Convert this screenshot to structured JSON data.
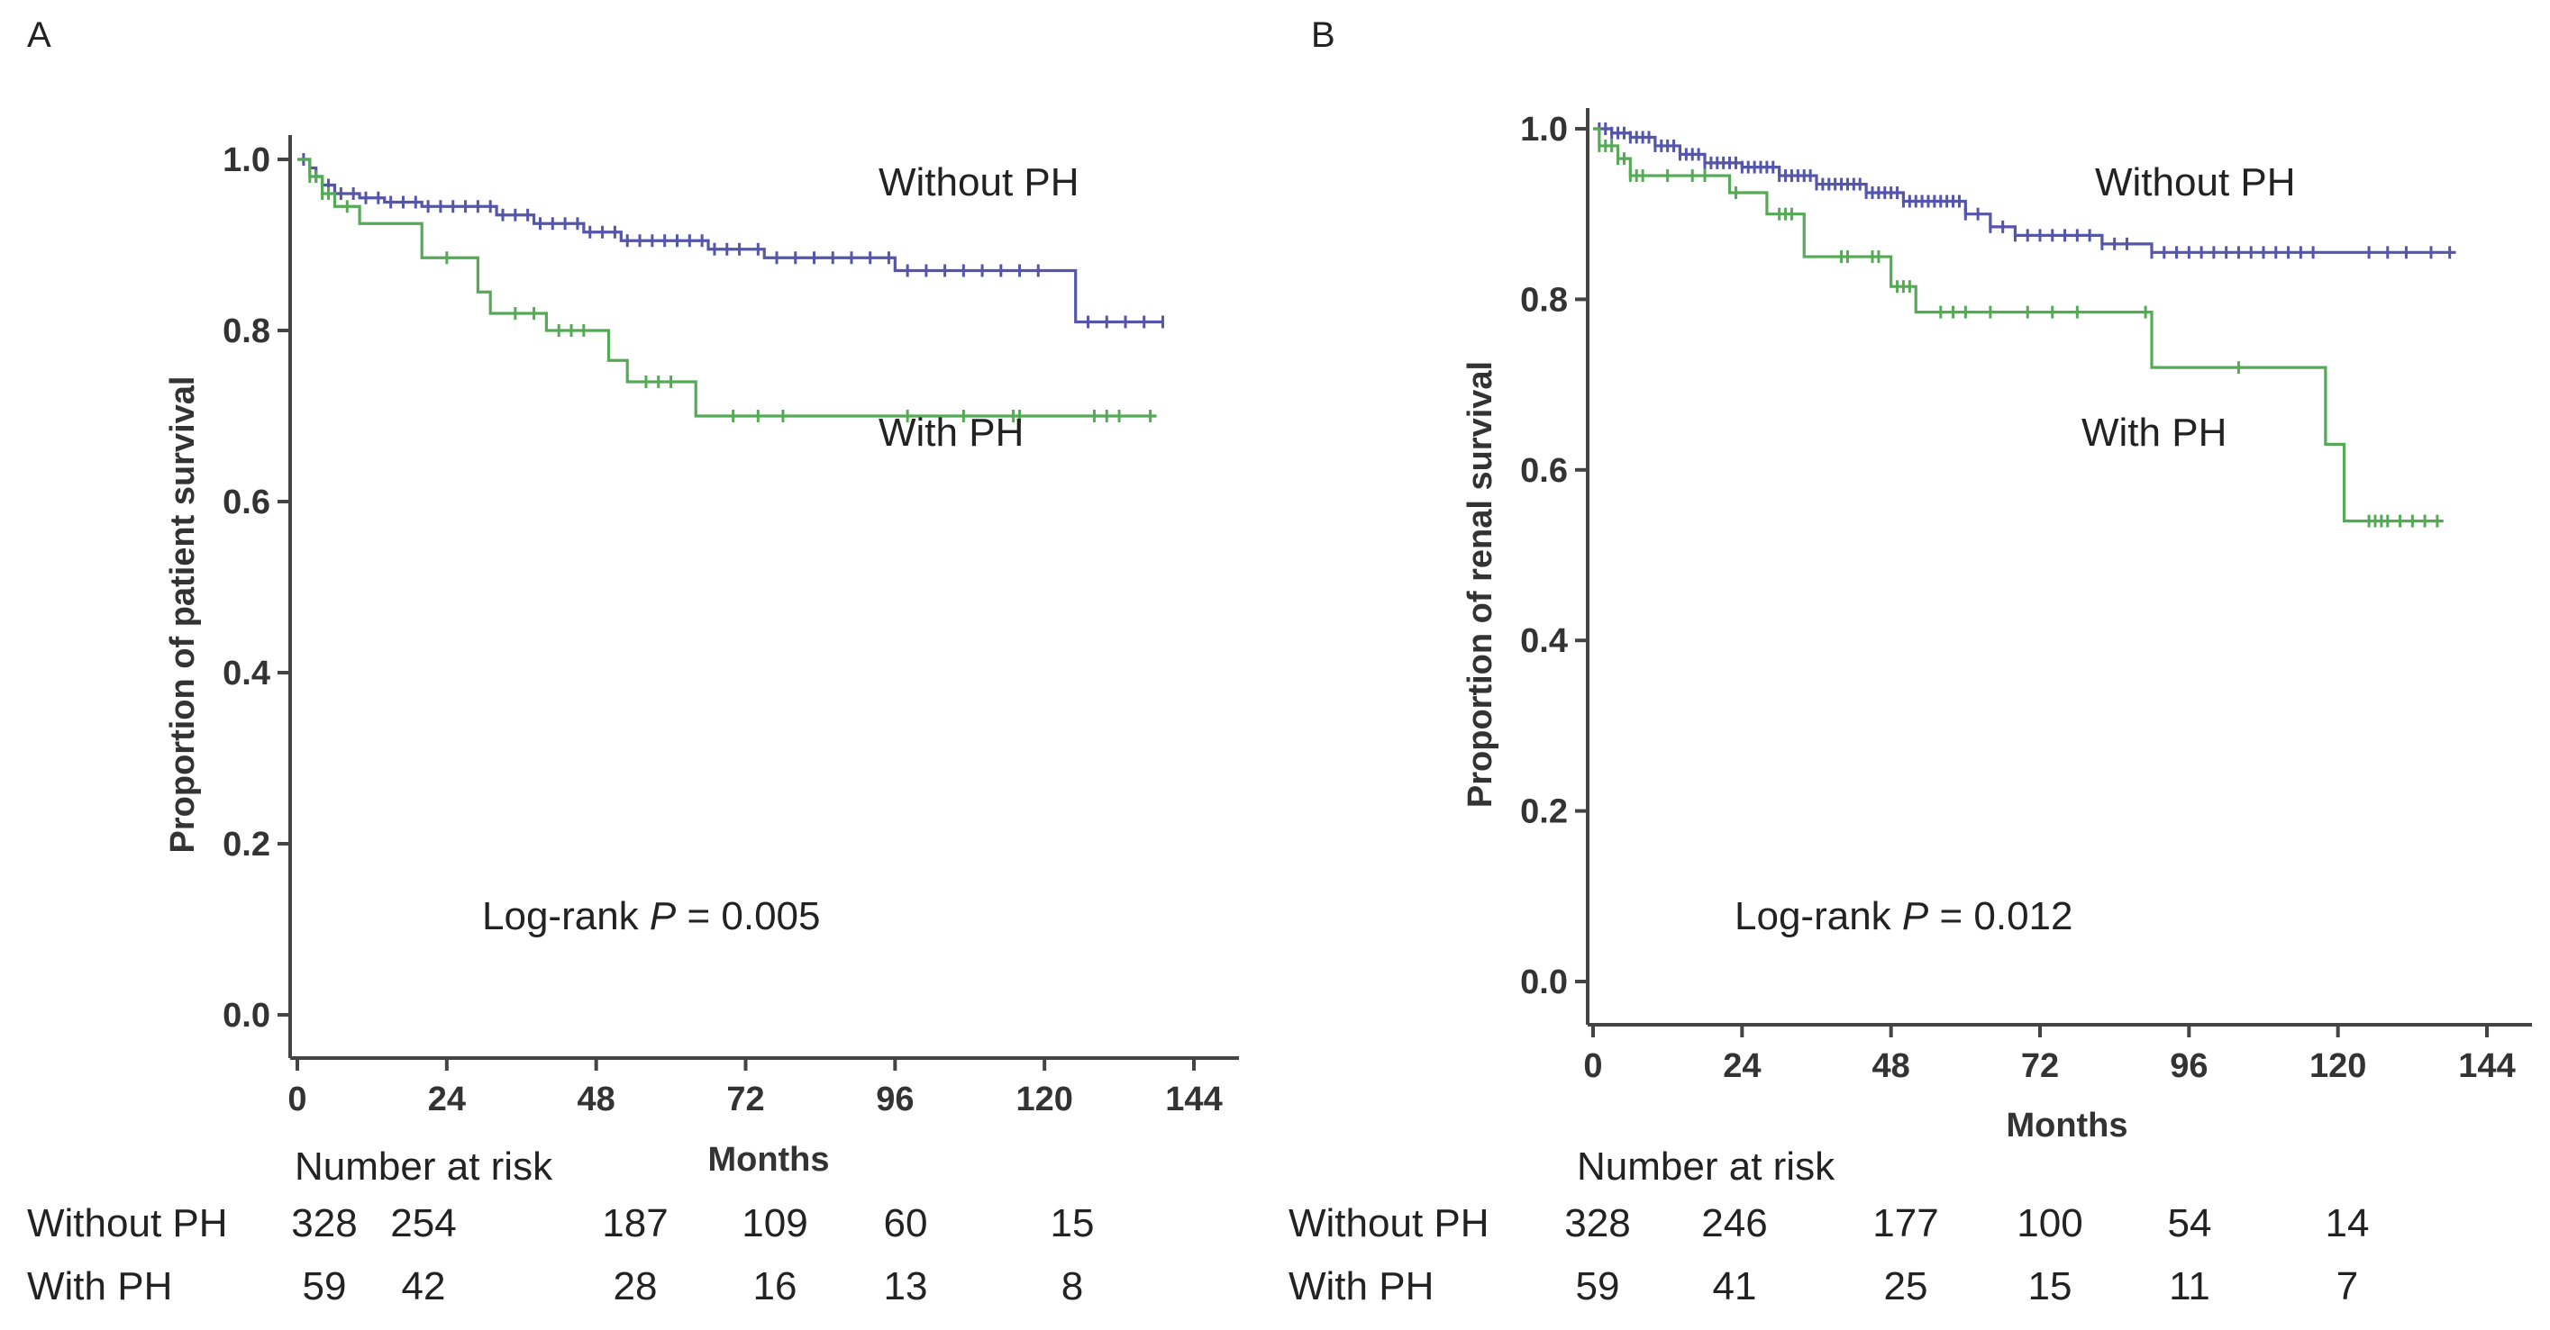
{
  "chart_data": [
    {
      "panel": "A",
      "type": "line",
      "subtype": "kaplan-meier",
      "xlabel": "Months",
      "ylabel": "Proportion of patient survival",
      "xlim": [
        0,
        144
      ],
      "ylim": [
        0,
        1
      ],
      "xticks": [
        "0",
        "24",
        "48",
        "72",
        "96",
        "120",
        "144"
      ],
      "yticks": [
        "0.0",
        "0.2",
        "0.4",
        "0.6",
        "0.8",
        "1.0"
      ],
      "series": [
        {
          "name": "Without PH",
          "color": "#5555aa",
          "steps": [
            [
              0,
              1.0
            ],
            [
              2,
              0.99
            ],
            [
              3,
              0.98
            ],
            [
              4,
              0.97
            ],
            [
              6,
              0.96
            ],
            [
              10,
              0.955
            ],
            [
              14,
              0.95
            ],
            [
              20,
              0.945
            ],
            [
              32,
              0.935
            ],
            [
              38,
              0.925
            ],
            [
              46,
              0.915
            ],
            [
              52,
              0.905
            ],
            [
              66,
              0.895
            ],
            [
              75,
              0.885
            ],
            [
              96,
              0.87
            ],
            [
              124,
              0.87
            ],
            [
              125,
              0.81
            ],
            [
              139,
              0.81
            ]
          ],
          "censors": [
            1,
            3,
            5,
            7,
            9,
            11,
            13,
            15,
            17,
            19,
            21,
            23,
            25,
            27,
            29,
            31,
            33,
            35,
            37,
            39,
            41,
            43,
            45,
            47,
            49,
            51,
            53,
            55,
            57,
            59,
            61,
            63,
            65,
            67,
            69,
            71,
            74,
            77,
            80,
            83,
            86,
            89,
            92,
            95,
            98,
            101,
            104,
            107,
            110,
            113,
            116,
            119,
            127,
            130,
            133,
            136,
            139
          ]
        },
        {
          "name": "With PH",
          "color": "#55aa55",
          "steps": [
            [
              0,
              1.0
            ],
            [
              2,
              0.98
            ],
            [
              4,
              0.96
            ],
            [
              6,
              0.945
            ],
            [
              10,
              0.925
            ],
            [
              20,
              0.885
            ],
            [
              29,
              0.845
            ],
            [
              31,
              0.82
            ],
            [
              40,
              0.8
            ],
            [
              50,
              0.765
            ],
            [
              53,
              0.74
            ],
            [
              64,
              0.7
            ],
            [
              138,
              0.7
            ]
          ],
          "censors": [
            2,
            3,
            4,
            5,
            8,
            24,
            35,
            38,
            42,
            44,
            46,
            56,
            58,
            60,
            70,
            74,
            78,
            98,
            107,
            115,
            116,
            128,
            130,
            132,
            137
          ]
        }
      ],
      "annotations": {
        "without_label": "Without PH",
        "with_label": "With PH",
        "logrank_prefix": "Log-rank ",
        "logrank_p": "P",
        "logrank_value": " = 0.005"
      },
      "risk_table": {
        "title": "Number at risk",
        "rows": [
          {
            "label": "Without PH",
            "values": [
              "328",
              "254",
              "187",
              "109",
              "60",
              "15"
            ]
          },
          {
            "label": "With PH",
            "values": [
              "59",
              "42",
              "28",
              "16",
              "13",
              "8"
            ]
          }
        ]
      }
    },
    {
      "panel": "B",
      "type": "line",
      "subtype": "kaplan-meier",
      "xlabel": "Months",
      "ylabel": "Proportion of renal survival",
      "xlim": [
        0,
        144
      ],
      "ylim": [
        0,
        1
      ],
      "xticks": [
        "0",
        "24",
        "48",
        "72",
        "96",
        "120",
        "144"
      ],
      "yticks": [
        "0.0",
        "0.2",
        "0.4",
        "0.6",
        "0.8",
        "1.0"
      ],
      "series": [
        {
          "name": "Without PH",
          "color": "#5555aa",
          "steps": [
            [
              0,
              1.0
            ],
            [
              3,
              0.995
            ],
            [
              6,
              0.99
            ],
            [
              10,
              0.98
            ],
            [
              14,
              0.97
            ],
            [
              18,
              0.96
            ],
            [
              24,
              0.955
            ],
            [
              30,
              0.945
            ],
            [
              36,
              0.935
            ],
            [
              44,
              0.925
            ],
            [
              50,
              0.915
            ],
            [
              60,
              0.9
            ],
            [
              64,
              0.885
            ],
            [
              68,
              0.875
            ],
            [
              82,
              0.865
            ],
            [
              90,
              0.855
            ],
            [
              139,
              0.855
            ]
          ],
          "censors": [
            1,
            2,
            3,
            4,
            5,
            6,
            7,
            8,
            9,
            10,
            11,
            12,
            13,
            14,
            15,
            16,
            17,
            18,
            19,
            20,
            21,
            22,
            23,
            24,
            25,
            26,
            27,
            28,
            29,
            30,
            31,
            32,
            33,
            34,
            35,
            36,
            37,
            38,
            39,
            40,
            41,
            42,
            43,
            44,
            45,
            46,
            47,
            48,
            49,
            50,
            51,
            52,
            53,
            54,
            55,
            56,
            57,
            58,
            59,
            60,
            62,
            64,
            66,
            68,
            70,
            72,
            74,
            76,
            78,
            80,
            82,
            84,
            86,
            90,
            92,
            94,
            96,
            98,
            100,
            102,
            104,
            106,
            108,
            110,
            112,
            114,
            116,
            125,
            128,
            131,
            135,
            138
          ]
        },
        {
          "name": "With PH",
          "color": "#55aa55",
          "steps": [
            [
              0,
              1.0
            ],
            [
              1,
              0.98
            ],
            [
              4,
              0.965
            ],
            [
              6,
              0.945
            ],
            [
              22,
              0.925
            ],
            [
              28,
              0.9
            ],
            [
              34,
              0.85
            ],
            [
              48,
              0.815
            ],
            [
              52,
              0.785
            ],
            [
              90,
              0.72
            ],
            [
              118,
              0.63
            ],
            [
              121,
              0.54
            ],
            [
              137,
              0.54
            ]
          ],
          "censors": [
            1,
            2,
            3,
            4,
            5,
            6,
            7,
            8,
            12,
            16,
            18,
            23,
            30,
            31,
            32,
            40,
            41,
            45,
            46,
            49,
            50,
            51,
            56,
            58,
            60,
            64,
            70,
            74,
            78,
            89,
            104,
            125,
            126,
            127,
            128,
            130,
            132,
            134,
            136
          ]
        }
      ],
      "annotations": {
        "without_label": "Without PH",
        "with_label": "With PH",
        "logrank_prefix": "Log-rank ",
        "logrank_p": "P",
        "logrank_value": " = 0.012"
      },
      "risk_table": {
        "title": "Number at risk",
        "rows": [
          {
            "label": "Without PH",
            "values": [
              "328",
              "246",
              "177",
              "100",
              "54",
              "14"
            ]
          },
          {
            "label": "With PH",
            "values": [
              "59",
              "41",
              "25",
              "15",
              "11",
              "7"
            ]
          }
        ]
      }
    }
  ]
}
